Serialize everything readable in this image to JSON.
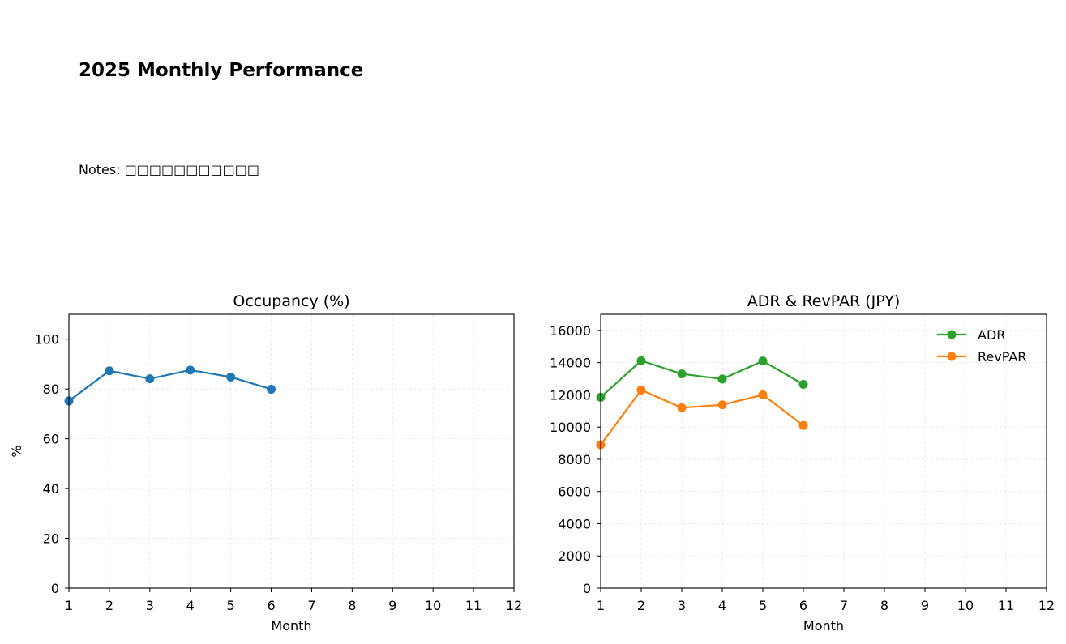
{
  "page": {
    "title": "2025 Monthly Performance",
    "notes": "Notes: □□□□□□□□□□□"
  },
  "colors": {
    "occupancy": "#1f77b4",
    "adr": "#2ca02c",
    "revpar": "#ff7f0e",
    "grid": "#e6e6e6"
  },
  "chart_data": [
    {
      "type": "line",
      "title": "Occupancy (%)",
      "xlabel": "Month",
      "ylabel": "%",
      "xlim": [
        1,
        12
      ],
      "ylim": [
        0,
        110
      ],
      "xticks": [
        1,
        2,
        3,
        4,
        5,
        6,
        7,
        8,
        9,
        10,
        11,
        12
      ],
      "yticks": [
        0,
        20,
        40,
        60,
        80,
        100
      ],
      "grid": true,
      "series": [
        {
          "x": [
            1,
            2,
            3,
            4,
            5,
            6
          ],
          "values": [
            75.2,
            87.3,
            84.1,
            87.6,
            84.8,
            79.9
          ],
          "color": "#1f77b4"
        }
      ]
    },
    {
      "type": "line",
      "title": "ADR & RevPAR (JPY)",
      "xlabel": "Month",
      "ylabel": "",
      "xlim": [
        1,
        12
      ],
      "ylim": [
        0,
        17000
      ],
      "xticks": [
        1,
        2,
        3,
        4,
        5,
        6,
        7,
        8,
        9,
        10,
        11,
        12
      ],
      "yticks": [
        0,
        2000,
        4000,
        6000,
        8000,
        10000,
        12000,
        14000,
        16000
      ],
      "grid": true,
      "legend": "top-right",
      "series": [
        {
          "name": "ADR",
          "x": [
            1,
            2,
            3,
            4,
            5,
            6
          ],
          "values": [
            11850,
            14120,
            13300,
            12980,
            14100,
            12650
          ],
          "color": "#2ca02c"
        },
        {
          "name": "RevPAR",
          "x": [
            1,
            2,
            3,
            4,
            5,
            6
          ],
          "values": [
            8900,
            12300,
            11200,
            11380,
            12000,
            10100
          ],
          "color": "#ff7f0e"
        }
      ]
    }
  ]
}
